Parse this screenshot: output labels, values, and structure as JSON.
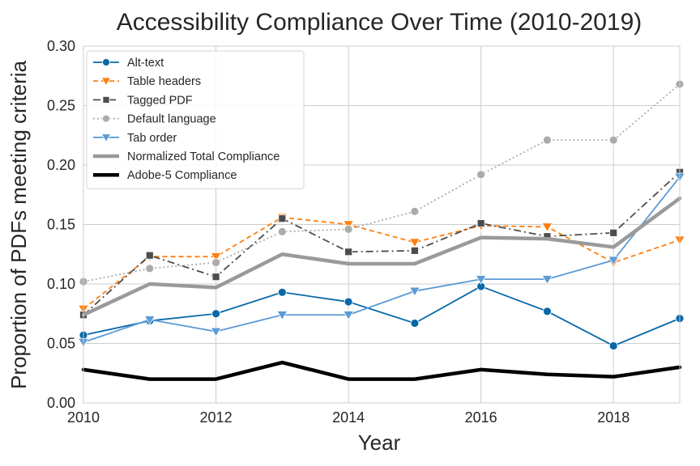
{
  "chart_data": {
    "type": "line",
    "title": "Accessibility Compliance Over Time (2010-2019)",
    "xlabel": "Year",
    "ylabel": "Proportion of PDFs meeting criteria",
    "x": [
      2010,
      2011,
      2012,
      2013,
      2014,
      2015,
      2016,
      2017,
      2018,
      2019
    ],
    "xlim": [
      2010,
      2019
    ],
    "ylim": [
      0,
      0.3
    ],
    "xticks": [
      2010,
      2012,
      2014,
      2016,
      2018
    ],
    "xtick_labels": [
      "2010",
      "2012",
      "2014",
      "2016",
      "2018"
    ],
    "yticks": [
      0,
      0.05,
      0.1,
      0.15,
      0.2,
      0.25,
      0.3
    ],
    "ytick_labels": [
      "0.00",
      "0.05",
      "0.10",
      "0.15",
      "0.20",
      "0.25",
      "0.30"
    ],
    "grid": true,
    "legend_position": "top-left",
    "series": [
      {
        "name": "Alt-text",
        "color": "#0868a8",
        "dash": "",
        "marker": "circle",
        "width": 1.8,
        "values": [
          0.057,
          0.069,
          0.075,
          0.093,
          0.085,
          0.067,
          0.098,
          0.077,
          0.048,
          0.071
        ]
      },
      {
        "name": "Table headers",
        "color": "#ff7f0e",
        "dash": "6,4",
        "marker": "triangle-down",
        "width": 1.8,
        "values": [
          0.079,
          0.123,
          0.123,
          0.156,
          0.15,
          0.135,
          0.149,
          0.148,
          0.118,
          0.137
        ]
      },
      {
        "name": "Tagged PDF",
        "color": "#4d4d4d",
        "dash": "9,4,2,4",
        "marker": "square",
        "width": 1.8,
        "values": [
          0.074,
          0.124,
          0.106,
          0.155,
          0.127,
          0.128,
          0.151,
          0.14,
          0.143,
          0.194
        ]
      },
      {
        "name": "Default language",
        "color": "#ababab",
        "dash": "2,3",
        "marker": "circle",
        "width": 1.8,
        "values": [
          0.102,
          0.113,
          0.118,
          0.144,
          0.146,
          0.161,
          0.192,
          0.221,
          0.221,
          0.268
        ]
      },
      {
        "name": "Tab order",
        "color": "#5b9bd5",
        "dash": "",
        "marker": "triangle-down",
        "width": 1.8,
        "values": [
          0.051,
          0.07,
          0.06,
          0.074,
          0.074,
          0.094,
          0.104,
          0.104,
          0.12,
          0.19
        ]
      },
      {
        "name": "Normalized Total Compliance",
        "color": "#9a9a9a",
        "dash": "",
        "marker": "none",
        "width": 4.5,
        "values": [
          0.074,
          0.1,
          0.097,
          0.125,
          0.117,
          0.117,
          0.139,
          0.138,
          0.131,
          0.172
        ]
      },
      {
        "name": "Adobe-5 Compliance",
        "color": "#000000",
        "dash": "",
        "marker": "none",
        "width": 4.5,
        "values": [
          0.028,
          0.02,
          0.02,
          0.034,
          0.02,
          0.02,
          0.028,
          0.024,
          0.022,
          0.03
        ]
      }
    ]
  }
}
